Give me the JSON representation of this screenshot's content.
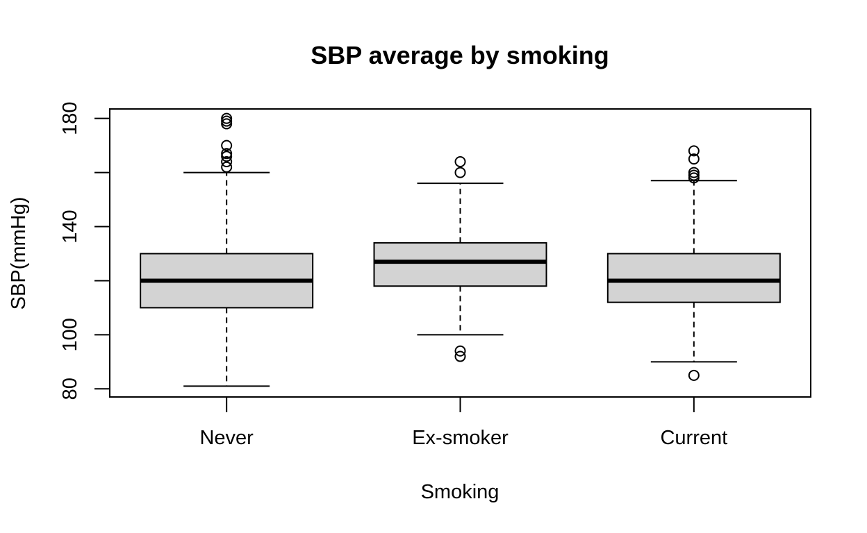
{
  "chart_data": {
    "type": "boxplot",
    "title": "SBP average by smoking",
    "xlabel": "Smoking",
    "ylabel": "SBP(mmHg)",
    "categories": [
      "Never",
      "Ex-smoker",
      "Current"
    ],
    "ylim": [
      77,
      183.5
    ],
    "yticks": [
      80,
      100,
      140,
      180
    ],
    "yticks_minor": [
      120,
      160
    ],
    "box_fill": "#d3d3d3",
    "line_color": "#000000",
    "boxes": [
      {
        "name": "Never",
        "whisker_low": 81,
        "q1": 110,
        "median": 120,
        "q3": 130,
        "whisker_high": 160,
        "outliers": [
          162,
          164,
          166,
          167,
          170,
          178,
          179,
          180
        ]
      },
      {
        "name": "Ex-smoker",
        "whisker_low": 100,
        "q1": 118,
        "median": 127,
        "q3": 134,
        "whisker_high": 156,
        "outliers": [
          160,
          164,
          92,
          94
        ]
      },
      {
        "name": "Current",
        "whisker_low": 90,
        "q1": 112,
        "median": 120,
        "q3": 130,
        "whisker_high": 157,
        "outliers": [
          158,
          159,
          160,
          165,
          168,
          85
        ]
      }
    ]
  }
}
